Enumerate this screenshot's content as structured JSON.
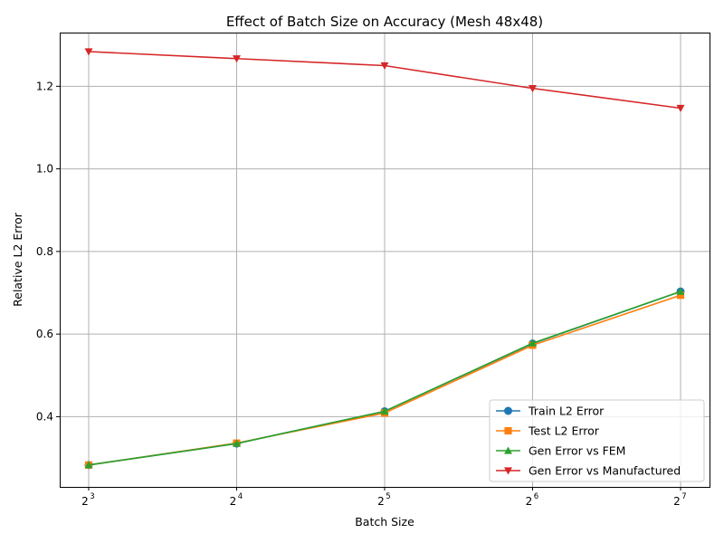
{
  "chart_data": {
    "type": "line",
    "title": "Effect of Batch Size on Accuracy (Mesh 48x48)",
    "xlabel": "Batch Size",
    "ylabel": "Relative L2 Error",
    "x_scale": "log2",
    "x": [
      8,
      16,
      32,
      64,
      128
    ],
    "x_tick_labels": [
      {
        "base": "2",
        "exp": "3"
      },
      {
        "base": "2",
        "exp": "4"
      },
      {
        "base": "2",
        "exp": "5"
      },
      {
        "base": "2",
        "exp": "6"
      },
      {
        "base": "2",
        "exp": "7"
      }
    ],
    "y_ticks": [
      "0.4",
      "0.6",
      "0.8",
      "1.0",
      "1.2"
    ],
    "ylim": [
      0.23,
      1.33
    ],
    "grid": true,
    "legend_position": "lower right",
    "series": [
      {
        "name": "Train L2 Error",
        "color": "#1f77b4",
        "marker": "circle",
        "values": [
          0.283,
          0.335,
          0.413,
          0.577,
          0.703
        ]
      },
      {
        "name": "Test L2 Error",
        "color": "#ff7f0e",
        "marker": "square",
        "values": [
          0.283,
          0.336,
          0.409,
          0.573,
          0.694
        ]
      },
      {
        "name": "Gen Error vs FEM",
        "color": "#2ca02c",
        "marker": "triangle-up",
        "values": [
          0.283,
          0.335,
          0.413,
          0.578,
          0.703
        ]
      },
      {
        "name": "Gen Error vs Manufactured",
        "color": "#d62728",
        "marker": "triangle-down",
        "values": [
          1.284,
          1.267,
          1.25,
          1.195,
          1.147
        ]
      }
    ]
  }
}
